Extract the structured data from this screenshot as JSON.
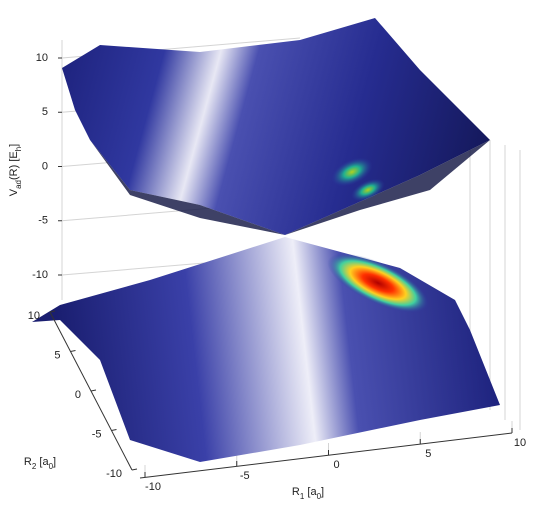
{
  "chart_data": {
    "type": "surface3d",
    "xlabel": [
      "R",
      "1",
      " [a",
      "0",
      "]"
    ],
    "ylabel": [
      "R",
      "2",
      " [a",
      "0",
      "]"
    ],
    "zlabel": [
      "V",
      "ad",
      "(R) [E",
      "h",
      "]"
    ],
    "xlim": [
      -10,
      10
    ],
    "xticks": [
      -10,
      -5,
      0,
      5,
      10
    ],
    "ylim": [
      -10,
      10
    ],
    "yticks": [
      10,
      5,
      0,
      -5,
      -10
    ],
    "zlim": [
      -10,
      10
    ],
    "zticks": [
      10,
      5,
      0,
      -5,
      -10
    ],
    "grid": true
  }
}
